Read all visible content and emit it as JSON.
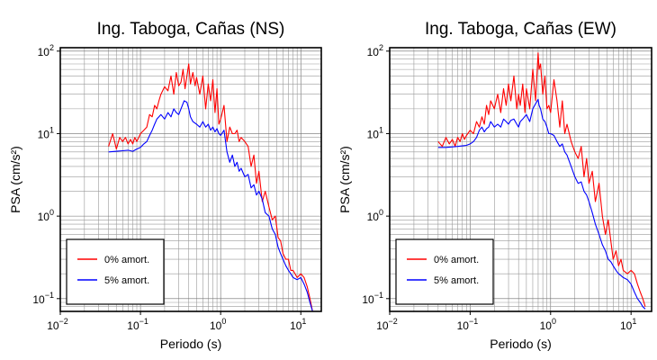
{
  "chart_data": [
    {
      "type": "line",
      "title": "Ing. Taboga, Cañas (NS)",
      "xlabel": "Periodo (s)",
      "ylabel": "PSA (cm/s²)",
      "xscale": "log",
      "yscale": "log",
      "xlim": [
        0.01,
        18
      ],
      "ylim": [
        0.07,
        110
      ],
      "grid": true,
      "legend_position": "bottom-left",
      "xticks": [
        {
          "v": 0.01,
          "b": "10",
          "e": "−2"
        },
        {
          "v": 0.1,
          "b": "10",
          "e": "−1"
        },
        {
          "v": 1,
          "b": "10",
          "e": "0"
        },
        {
          "v": 10,
          "b": "10",
          "e": "1"
        }
      ],
      "yticks": [
        {
          "v": 0.1,
          "b": "10",
          "e": "−1"
        },
        {
          "v": 1,
          "b": "10",
          "e": "0"
        },
        {
          "v": 10,
          "b": "10",
          "e": "1"
        },
        {
          "v": 100,
          "b": "10",
          "e": "2"
        }
      ],
      "series": [
        {
          "name": "0% amort.",
          "color": "#ff0000",
          "x": [
            0.04,
            0.045,
            0.05,
            0.055,
            0.06,
            0.065,
            0.07,
            0.075,
            0.08,
            0.085,
            0.09,
            0.1,
            0.11,
            0.12,
            0.13,
            0.14,
            0.15,
            0.16,
            0.17,
            0.18,
            0.2,
            0.22,
            0.24,
            0.26,
            0.28,
            0.3,
            0.32,
            0.34,
            0.36,
            0.38,
            0.4,
            0.42,
            0.45,
            0.48,
            0.5,
            0.55,
            0.6,
            0.65,
            0.7,
            0.75,
            0.8,
            0.85,
            0.9,
            0.95,
            1.0,
            1.1,
            1.2,
            1.3,
            1.4,
            1.5,
            1.6,
            1.7,
            1.8,
            2.0,
            2.2,
            2.4,
            2.6,
            2.8,
            3.0,
            3.3,
            3.6,
            4.0,
            4.4,
            4.8,
            5.2,
            5.6,
            6.0,
            6.5,
            7.0,
            7.5,
            8.0,
            9.0,
            10.0,
            11.0,
            12.0,
            13.0,
            14.0
          ],
          "y": [
            7,
            10,
            6.5,
            9,
            8,
            9,
            7.5,
            8.5,
            7.5,
            9,
            8,
            10,
            11,
            12,
            17,
            16,
            22,
            20,
            25,
            30,
            37,
            33,
            50,
            30,
            55,
            38,
            42,
            60,
            35,
            50,
            70,
            40,
            55,
            38,
            48,
            30,
            50,
            20,
            40,
            25,
            45,
            18,
            35,
            13,
            15,
            22,
            8,
            12,
            10,
            10,
            11,
            8,
            9,
            8,
            7,
            4,
            5.5,
            2.5,
            3.5,
            1.5,
            2,
            1.3,
            0.9,
            1.0,
            0.55,
            0.5,
            0.35,
            0.3,
            0.3,
            0.22,
            0.22,
            0.18,
            0.2,
            0.18,
            0.14,
            0.1,
            0.07
          ]
        },
        {
          "name": "5% amort.",
          "color": "#0000ff",
          "x": [
            0.04,
            0.05,
            0.06,
            0.07,
            0.08,
            0.09,
            0.1,
            0.11,
            0.12,
            0.13,
            0.14,
            0.15,
            0.16,
            0.17,
            0.18,
            0.2,
            0.22,
            0.24,
            0.26,
            0.28,
            0.3,
            0.32,
            0.35,
            0.38,
            0.4,
            0.42,
            0.45,
            0.5,
            0.55,
            0.6,
            0.65,
            0.7,
            0.75,
            0.8,
            0.85,
            0.9,
            0.95,
            1.0,
            1.1,
            1.2,
            1.3,
            1.4,
            1.5,
            1.6,
            1.7,
            1.8,
            2.0,
            2.2,
            2.4,
            2.6,
            2.8,
            3.0,
            3.3,
            3.6,
            4.0,
            4.4,
            4.8,
            5.2,
            5.6,
            6.0,
            6.5,
            7.0,
            7.5,
            8.0,
            9.0,
            10.0,
            11.0,
            12.0,
            13.0,
            14.0
          ],
          "y": [
            6,
            6.1,
            6.2,
            6.3,
            6.1,
            6.5,
            6.8,
            7.5,
            8,
            9.5,
            11,
            13,
            15,
            16,
            17,
            15,
            18,
            16,
            20,
            18,
            17,
            20,
            25,
            24,
            20,
            16,
            14,
            13,
            12,
            14,
            12,
            13,
            11,
            12,
            10.5,
            11.5,
            10,
            9.5,
            11,
            6,
            4.5,
            5.5,
            4,
            4.5,
            3.5,
            3.8,
            3.0,
            3.2,
            2.2,
            2.4,
            1.8,
            2.0,
            1.6,
            1.1,
            1.0,
            0.7,
            0.6,
            0.42,
            0.35,
            0.3,
            0.25,
            0.22,
            0.2,
            0.18,
            0.17,
            0.18,
            0.15,
            0.12,
            0.09,
            0.07
          ]
        }
      ]
    },
    {
      "type": "line",
      "title": "Ing. Taboga, Cañas (EW)",
      "xlabel": "Periodo (s)",
      "ylabel": "PSA (cm/s²)",
      "xscale": "log",
      "yscale": "log",
      "xlim": [
        0.01,
        18
      ],
      "ylim": [
        0.07,
        110
      ],
      "grid": true,
      "legend_position": "bottom-left",
      "xticks": [
        {
          "v": 0.01,
          "b": "10",
          "e": "−2"
        },
        {
          "v": 0.1,
          "b": "10",
          "e": "−1"
        },
        {
          "v": 1,
          "b": "10",
          "e": "0"
        },
        {
          "v": 10,
          "b": "10",
          "e": "1"
        }
      ],
      "yticks": [
        {
          "v": 0.1,
          "b": "10",
          "e": "−1"
        },
        {
          "v": 1,
          "b": "10",
          "e": "0"
        },
        {
          "v": 10,
          "b": "10",
          "e": "1"
        },
        {
          "v": 100,
          "b": "10",
          "e": "2"
        }
      ],
      "series": [
        {
          "name": "0% amort.",
          "color": "#ff0000",
          "x": [
            0.04,
            0.045,
            0.05,
            0.055,
            0.06,
            0.065,
            0.07,
            0.075,
            0.08,
            0.085,
            0.09,
            0.1,
            0.11,
            0.12,
            0.13,
            0.14,
            0.15,
            0.16,
            0.17,
            0.18,
            0.2,
            0.22,
            0.24,
            0.26,
            0.28,
            0.3,
            0.32,
            0.35,
            0.38,
            0.4,
            0.42,
            0.45,
            0.48,
            0.5,
            0.55,
            0.6,
            0.65,
            0.7,
            0.72,
            0.75,
            0.8,
            0.85,
            0.9,
            0.95,
            1.0,
            1.1,
            1.2,
            1.3,
            1.4,
            1.5,
            1.6,
            1.8,
            2.0,
            2.2,
            2.4,
            2.6,
            2.8,
            3.0,
            3.3,
            3.6,
            4.0,
            4.4,
            4.8,
            5.2,
            5.6,
            6.0,
            6.5,
            7.0,
            7.5,
            8.0,
            9.0,
            10.0,
            11.0,
            12.0,
            13.0,
            14.0,
            15.0
          ],
          "y": [
            8,
            7,
            9,
            7.5,
            8.5,
            7,
            9,
            8,
            10,
            8.5,
            9.5,
            11,
            10,
            14,
            12,
            16,
            13,
            22,
            17,
            25,
            20,
            30,
            18,
            35,
            22,
            40,
            25,
            50,
            20,
            30,
            22,
            40,
            18,
            35,
            20,
            60,
            25,
            95,
            60,
            70,
            30,
            50,
            20,
            22,
            18,
            45,
            25,
            12,
            25,
            10,
            13,
            8,
            6,
            5,
            7,
            3,
            5,
            2.5,
            3.5,
            1.5,
            2.5,
            1.0,
            0.6,
            0.9,
            0.5,
            0.3,
            0.38,
            0.25,
            0.3,
            0.22,
            0.2,
            0.22,
            0.2,
            0.15,
            0.12,
            0.1,
            0.08
          ]
        },
        {
          "name": "5% amort.",
          "color": "#0000ff",
          "x": [
            0.04,
            0.05,
            0.06,
            0.07,
            0.08,
            0.09,
            0.1,
            0.11,
            0.12,
            0.13,
            0.14,
            0.15,
            0.16,
            0.17,
            0.18,
            0.2,
            0.22,
            0.24,
            0.26,
            0.28,
            0.3,
            0.32,
            0.35,
            0.38,
            0.4,
            0.42,
            0.45,
            0.5,
            0.55,
            0.6,
            0.65,
            0.7,
            0.72,
            0.75,
            0.8,
            0.85,
            0.9,
            0.95,
            1.0,
            1.1,
            1.2,
            1.3,
            1.4,
            1.5,
            1.6,
            1.8,
            2.0,
            2.2,
            2.4,
            2.6,
            2.8,
            3.0,
            3.3,
            3.6,
            4.0,
            4.4,
            4.8,
            5.2,
            5.6,
            6.0,
            6.5,
            7.0,
            7.5,
            8.0,
            9.0,
            10.0,
            11.0,
            12.0,
            13.0,
            14.0,
            15.0
          ],
          "y": [
            6.8,
            6.8,
            6.9,
            7,
            7.1,
            7.2,
            7.5,
            8,
            9,
            11,
            12,
            10.5,
            11.5,
            12,
            14,
            12,
            13,
            12,
            15,
            14,
            13,
            14.5,
            15,
            13,
            12,
            14,
            15,
            17,
            14,
            20,
            23,
            26,
            22,
            20,
            15,
            14,
            12,
            10,
            10,
            9.5,
            8,
            7,
            7.5,
            6,
            5.5,
            4,
            3,
            2.5,
            2.6,
            2,
            1.8,
            1.5,
            1.1,
            0.8,
            0.6,
            0.45,
            0.38,
            0.3,
            0.28,
            0.25,
            0.22,
            0.2,
            0.19,
            0.18,
            0.17,
            0.15,
            0.12,
            0.1,
            0.09,
            0.08,
            0.075
          ]
        }
      ]
    }
  ]
}
